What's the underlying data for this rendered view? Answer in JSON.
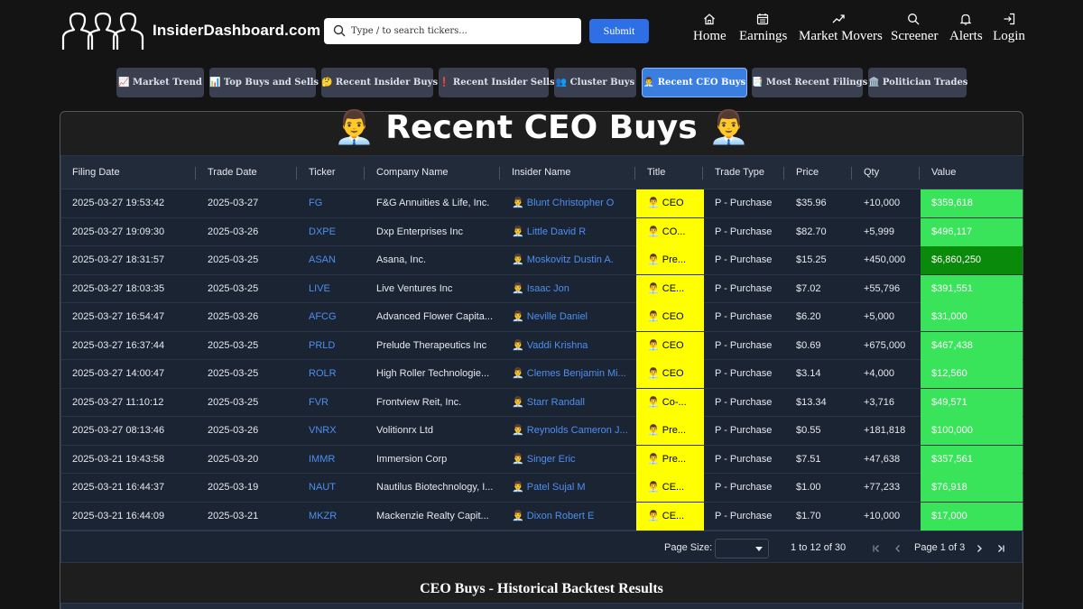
{
  "header": {
    "brand": "InsiderDashboard.com",
    "search_placeholder": "Type / to search tickers...",
    "submit_label": "Submit",
    "nav": [
      {
        "label": "Home",
        "icon": "home-icon"
      },
      {
        "label": "Earnings",
        "icon": "calendar-icon"
      },
      {
        "label": "Market Movers",
        "icon": "trending-up-icon"
      },
      {
        "label": "Screener",
        "icon": "search-icon"
      },
      {
        "label": "Alerts",
        "icon": "bell-icon"
      },
      {
        "label": "Login",
        "icon": "login-icon"
      }
    ]
  },
  "pills": [
    {
      "label": "📈 Market Trend"
    },
    {
      "label": "📊 Top Buys and Sells"
    },
    {
      "label": "🤔 Recent Insider Buys"
    },
    {
      "label": "❗ Recent Insider Sells"
    },
    {
      "label": "👥 Cluster Buys"
    },
    {
      "label": "👨‍💼 Recent CEO Buys",
      "active": true
    },
    {
      "label": "📑 Most Recent Filings"
    },
    {
      "label": "🏛️ Politician Trades"
    }
  ],
  "page_title": "👨‍💼 Recent CEO Buys 👨‍💼",
  "table": {
    "columns": [
      "Filing Date",
      "Trade Date",
      "Ticker",
      "Company Name",
      "Insider Name",
      "Title",
      "Trade Type",
      "Price",
      "Qty",
      "Value"
    ],
    "rows": [
      [
        "2025-03-27 19:53:42",
        "2025-03-27",
        "FG",
        "F&G Annuities & Life, Inc.",
        "👨‍💼 Blunt Christopher O",
        "👨‍💼 CEO",
        "P - Purchase",
        "$35.96",
        "+10,000",
        "$359,618"
      ],
      [
        "2025-03-27 19:09:30",
        "2025-03-26",
        "DXPE",
        "Dxp Enterprises Inc",
        "👨‍💼 Little David R",
        "👨‍💼 CO...",
        "P - Purchase",
        "$82.70",
        "+5,999",
        "$496,117"
      ],
      [
        "2025-03-27 18:31:57",
        "2025-03-25",
        "ASAN",
        "Asana, Inc.",
        "👨‍💼 Moskovitz Dustin A.",
        "👨‍💼 Pre...",
        "P - Purchase",
        "$15.25",
        "+450,000",
        "$6,860,250"
      ],
      [
        "2025-03-27 18:03:35",
        "2025-03-25",
        "LIVE",
        "Live Ventures Inc",
        "👨‍💼 Isaac Jon",
        "👨‍💼 CE...",
        "P - Purchase",
        "$7.02",
        "+55,796",
        "$391,551"
      ],
      [
        "2025-03-27 16:54:47",
        "2025-03-26",
        "AFCG",
        "Advanced Flower Capita...",
        "👨‍💼 Neville Daniel",
        "👨‍💼 CEO",
        "P - Purchase",
        "$6.20",
        "+5,000",
        "$31,000"
      ],
      [
        "2025-03-27 16:37:44",
        "2025-03-25",
        "PRLD",
        "Prelude Therapeutics Inc",
        "👨‍💼 Vaddi Krishna",
        "👨‍💼 CEO",
        "P - Purchase",
        "$0.69",
        "+675,000",
        "$467,438"
      ],
      [
        "2025-03-27 14:00:47",
        "2025-03-25",
        "ROLR",
        "High Roller Technologie...",
        "👨‍💼 Clemes Benjamin Mi...",
        "👨‍💼 CEO",
        "P - Purchase",
        "$3.14",
        "+4,000",
        "$12,560"
      ],
      [
        "2025-03-27 11:10:12",
        "2025-03-25",
        "FVR",
        "Frontview Reit, Inc.",
        "👨‍💼 Starr Randall",
        "👨‍💼 Co-...",
        "P - Purchase",
        "$13.34",
        "+3,716",
        "$49,571"
      ],
      [
        "2025-03-27 08:13:46",
        "2025-03-26",
        "VNRX",
        "Volitionrx Ltd",
        "👨‍💼 Reynolds Cameron J...",
        "👨‍💼 Pre...",
        "P - Purchase",
        "$0.55",
        "+181,818",
        "$100,000"
      ],
      [
        "2025-03-21 19:43:58",
        "2025-03-20",
        "IMMR",
        "Immersion Corp",
        "👨‍💼 Singer Eric",
        "👨‍💼 Pre...",
        "P - Purchase",
        "$7.51",
        "+47,638",
        "$357,561"
      ],
      [
        "2025-03-21 16:44:37",
        "2025-03-19",
        "NAUT",
        "Nautilus Biotechnology, I...",
        "👨‍💼 Patel Sujal M",
        "👨‍💼 CE...",
        "P - Purchase",
        "$1.00",
        "+77,233",
        "$76,918"
      ],
      [
        "2025-03-21 16:44:09",
        "2025-03-21",
        "MKZR",
        "Mackenzie Realty Capit...",
        "👨‍💼 Dixon Robert E",
        "👨‍💼 CE...",
        "P - Purchase",
        "$1.70",
        "+10,000",
        "$17,000"
      ]
    ]
  },
  "pagination": {
    "page_size_label": "Page Size:",
    "range": "1 to 12 of 30",
    "page_text": "Page 1 of 3"
  },
  "backtest_title": "CEO Buys - Historical Backtest Results",
  "colors": {
    "title_bg": "#ffff00",
    "value_bg": "#39e35a",
    "value_bg_large": "#0a8a0a",
    "link": "#4d8ff0",
    "active_pill": "#3a7fe0"
  }
}
